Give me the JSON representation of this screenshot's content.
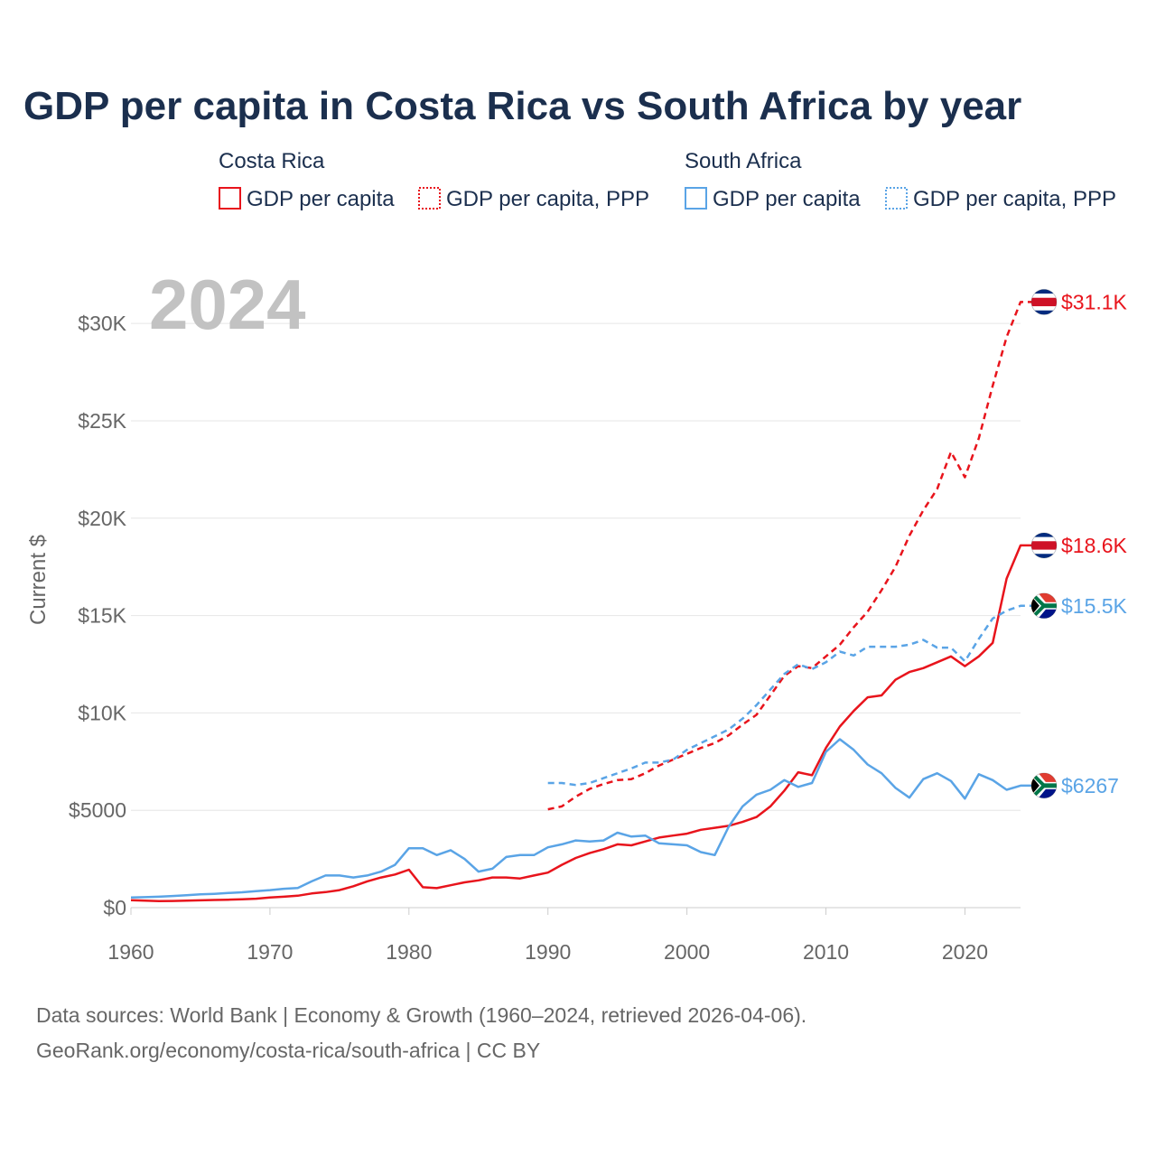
{
  "chart_data": {
    "type": "line",
    "title": "GDP per capita in Costa Rica vs South Africa by year",
    "ylabel": "Current $",
    "xlabel": "",
    "xlim": [
      1960,
      2024
    ],
    "ylim": [
      0,
      32000
    ],
    "x_ticks": [
      1960,
      1970,
      1980,
      1990,
      2000,
      2010,
      2020
    ],
    "x_tick_labels": [
      "1960",
      "1970",
      "1980",
      "1990",
      "2000",
      "2010",
      "2020"
    ],
    "y_ticks": [
      0,
      5000,
      10000,
      15000,
      20000,
      25000,
      30000
    ],
    "y_tick_labels": [
      "$0",
      "$5000",
      "$10K",
      "$15K",
      "$20K",
      "$25K",
      "$30K"
    ],
    "year_label": "2024",
    "legend": {
      "groups": [
        {
          "name": "Costa Rica",
          "items": [
            "GDP per capita",
            "GDP per capita, PPP"
          ]
        },
        {
          "name": "South Africa",
          "items": [
            "GDP per capita",
            "GDP per capita, PPP"
          ]
        }
      ]
    },
    "series": [
      {
        "name": "Costa Rica GDP per capita",
        "country": "Costa Rica",
        "color": "#e8141c",
        "dash": "solid",
        "end_label": "$18.6K",
        "flag": "costa-rica",
        "x": [
          1960,
          1961,
          1962,
          1963,
          1964,
          1965,
          1966,
          1967,
          1968,
          1969,
          1970,
          1971,
          1972,
          1973,
          1974,
          1975,
          1976,
          1977,
          1978,
          1979,
          1980,
          1981,
          1982,
          1983,
          1984,
          1985,
          1986,
          1987,
          1988,
          1989,
          1990,
          1991,
          1992,
          1993,
          1994,
          1995,
          1996,
          1997,
          1998,
          1999,
          2000,
          2001,
          2002,
          2003,
          2004,
          2005,
          2006,
          2007,
          2008,
          2009,
          2010,
          2011,
          2012,
          2013,
          2014,
          2015,
          2016,
          2017,
          2018,
          2019,
          2020,
          2021,
          2022,
          2023,
          2024
        ],
        "values": [
          380,
          360,
          340,
          345,
          360,
          375,
          395,
          410,
          430,
          460,
          520,
          560,
          610,
          730,
          800,
          900,
          1100,
          1350,
          1550,
          1700,
          1950,
          1050,
          1000,
          1150,
          1300,
          1400,
          1550,
          1550,
          1500,
          1650,
          1800,
          2200,
          2550,
          2800,
          3000,
          3250,
          3200,
          3400,
          3600,
          3700,
          3800,
          4000,
          4100,
          4200,
          4400,
          4650,
          5200,
          6000,
          6950,
          6800,
          8200,
          9300,
          10100,
          10800,
          10900,
          11700,
          12100,
          12300,
          12600,
          12900,
          12400,
          12900,
          13600,
          16900,
          18600
        ]
      },
      {
        "name": "Costa Rica GDP per capita, PPP",
        "country": "Costa Rica",
        "color": "#e8141c",
        "dash": "dashed",
        "end_label": "$31.1K",
        "flag": "costa-rica",
        "x": [
          1990,
          1991,
          1992,
          1993,
          1994,
          1995,
          1996,
          1997,
          1998,
          1999,
          2000,
          2001,
          2002,
          2003,
          2004,
          2005,
          2006,
          2007,
          2008,
          2009,
          2010,
          2011,
          2012,
          2013,
          2014,
          2015,
          2016,
          2017,
          2018,
          2019,
          2020,
          2021,
          2022,
          2023,
          2024
        ],
        "values": [
          5050,
          5200,
          5700,
          6100,
          6350,
          6550,
          6600,
          6900,
          7300,
          7600,
          7900,
          8200,
          8450,
          8850,
          9400,
          9900,
          10900,
          11900,
          12400,
          12300,
          12900,
          13500,
          14400,
          15200,
          16300,
          17500,
          19100,
          20400,
          21500,
          23400,
          22100,
          24100,
          26800,
          29300,
          31100
        ]
      },
      {
        "name": "South Africa GDP per capita",
        "country": "South Africa",
        "color": "#5aa4e6",
        "dash": "solid",
        "end_label": "$6267",
        "flag": "south-africa",
        "x": [
          1960,
          1961,
          1962,
          1963,
          1964,
          1965,
          1966,
          1967,
          1968,
          1969,
          1970,
          1971,
          1972,
          1973,
          1974,
          1975,
          1976,
          1977,
          1978,
          1979,
          1980,
          1981,
          1982,
          1983,
          1984,
          1985,
          1986,
          1987,
          1988,
          1989,
          1990,
          1991,
          1992,
          1993,
          1994,
          1995,
          1996,
          1997,
          1998,
          1999,
          2000,
          2001,
          2002,
          2003,
          2004,
          2005,
          2006,
          2007,
          2008,
          2009,
          2010,
          2011,
          2012,
          2013,
          2014,
          2015,
          2016,
          2017,
          2018,
          2019,
          2020,
          2021,
          2022,
          2023,
          2024
        ],
        "values": [
          520,
          540,
          560,
          600,
          640,
          680,
          710,
          750,
          790,
          850,
          900,
          970,
          1010,
          1350,
          1650,
          1650,
          1550,
          1650,
          1850,
          2200,
          3050,
          3050,
          2700,
          2950,
          2500,
          1850,
          2000,
          2600,
          2700,
          2700,
          3100,
          3250,
          3450,
          3400,
          3450,
          3850,
          3650,
          3700,
          3300,
          3250,
          3200,
          2850,
          2700,
          4150,
          5200,
          5800,
          6050,
          6550,
          6200,
          6400,
          8000,
          8650,
          8100,
          7350,
          6900,
          6150,
          5650,
          6600,
          6900,
          6500,
          5600,
          6850,
          6550,
          6050,
          6267
        ]
      },
      {
        "name": "South Africa GDP per capita, PPP",
        "country": "South Africa",
        "color": "#5aa4e6",
        "dash": "dashed",
        "end_label": "$15.5K",
        "flag": "south-africa",
        "x": [
          1990,
          1991,
          1992,
          1993,
          1994,
          1995,
          1996,
          1997,
          1998,
          1999,
          2000,
          2001,
          2002,
          2003,
          2004,
          2005,
          2006,
          2007,
          2008,
          2009,
          2010,
          2011,
          2012,
          2013,
          2014,
          2015,
          2016,
          2017,
          2018,
          2019,
          2020,
          2021,
          2022,
          2023,
          2024
        ],
        "values": [
          6400,
          6400,
          6300,
          6400,
          6650,
          6900,
          7150,
          7450,
          7450,
          7600,
          8100,
          8450,
          8800,
          9150,
          9700,
          10400,
          11200,
          12000,
          12500,
          12250,
          12600,
          13150,
          12950,
          13400,
          13400,
          13400,
          13500,
          13750,
          13350,
          13350,
          12650,
          13800,
          14850,
          15250,
          15500
        ]
      }
    ]
  },
  "source": {
    "line1": "Data sources: World Bank | Economy & Growth (1960–2024, retrieved 2026-04-06).",
    "line2": "GeoRank.org/economy/costa-rica/south-africa | CC BY"
  },
  "colors": {
    "costa_rica": "#e8141c",
    "south_africa": "#5aa4e6",
    "title": "#1b2f4e"
  }
}
